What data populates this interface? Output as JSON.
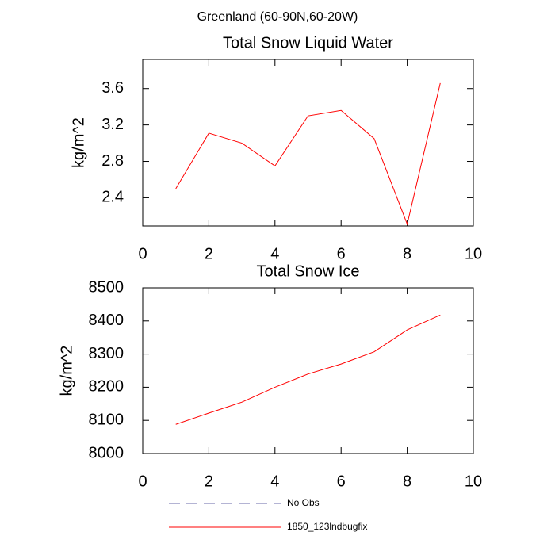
{
  "title": "Greenland (60-90N,60-20W)",
  "chart_data": [
    {
      "type": "line",
      "title": "Total Snow Liquid Water",
      "y_label": "kg/m^2",
      "x": [
        1,
        2,
        3,
        4,
        5,
        6,
        7,
        8,
        9
      ],
      "series": [
        {
          "name": "1850_123lndbugfix",
          "color": "#ff0000",
          "values": [
            2.5,
            3.11,
            3.0,
            2.75,
            3.3,
            3.36,
            3.05,
            2.11,
            3.66
          ]
        }
      ],
      "xlim": [
        0,
        10
      ],
      "xticks": [
        0,
        2,
        4,
        6,
        8,
        10
      ],
      "ylim": [
        2.09,
        3.92
      ],
      "yticks": [
        2.4,
        2.8,
        3.2,
        3.6
      ]
    },
    {
      "type": "line",
      "title": "Total Snow Ice",
      "y_label": "kg/m^2",
      "x": [
        1,
        2,
        3,
        4,
        5,
        6,
        7,
        8,
        9
      ],
      "series": [
        {
          "name": "1850_123lndbugfix",
          "color": "#ff0000",
          "values": [
            8088,
            8122,
            8155,
            8200,
            8240,
            8270,
            8307,
            8373,
            8418
          ]
        }
      ],
      "xlim": [
        0,
        10
      ],
      "xticks": [
        0,
        2,
        4,
        6,
        8,
        10
      ],
      "ylim": [
        8000,
        8500
      ],
      "yticks": [
        8000,
        8100,
        8200,
        8300,
        8400,
        8500
      ]
    }
  ],
  "legend": [
    {
      "name": "No Obs",
      "color": "#6a6aaa",
      "dashed": true
    },
    {
      "name": "1850_123lndbugfix",
      "color": "#ff0000",
      "dashed": false
    }
  ]
}
